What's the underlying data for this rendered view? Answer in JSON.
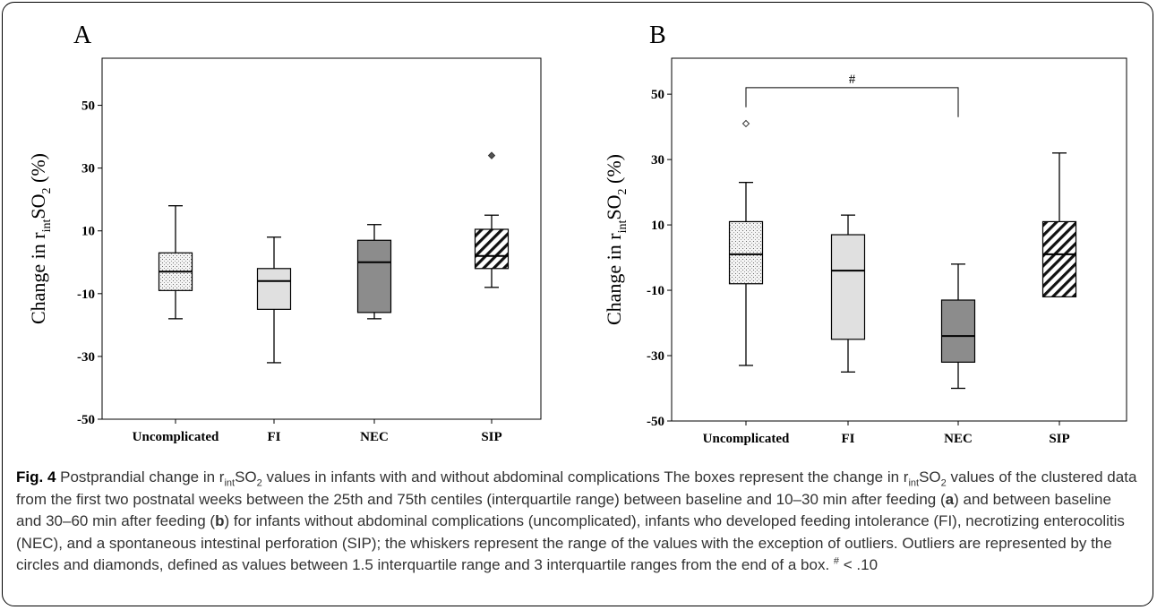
{
  "chart_data": [
    {
      "type": "boxplot",
      "panel": "A",
      "ylabel": "Change in rintSO2 (%)",
      "ylim": [
        -50,
        65
      ],
      "yticks": [
        50,
        30,
        10,
        -10,
        -30,
        -50
      ],
      "categories": [
        "Uncomplicated",
        "FI",
        "NEC",
        "SIP"
      ],
      "boxes": [
        {
          "category": "Uncomplicated",
          "fill": "dotted",
          "whisker_low": -18,
          "q1": -9,
          "median": -3,
          "q3": 3,
          "whisker_high": 18,
          "outliers": []
        },
        {
          "category": "FI",
          "fill": "light-gray",
          "whisker_low": -32,
          "q1": -15,
          "median": -6,
          "q3": -2,
          "whisker_high": 8,
          "outliers": []
        },
        {
          "category": "NEC",
          "fill": "dark-gray",
          "whisker_low": -18,
          "q1": -16,
          "median": 0,
          "q3": 7,
          "whisker_high": 12,
          "outliers": []
        },
        {
          "category": "SIP",
          "fill": "hatched",
          "whisker_low": -8,
          "q1": -2,
          "median": 2,
          "q3": 10.5,
          "whisker_high": 15,
          "outliers": [
            34
          ]
        }
      ],
      "significance": []
    },
    {
      "type": "boxplot",
      "panel": "B",
      "ylabel": "Change in rintSO2 (%)",
      "ylim": [
        -50,
        61
      ],
      "yticks": [
        50,
        30,
        10,
        -10,
        -30,
        -50
      ],
      "categories": [
        "Uncomplicated",
        "FI",
        "NEC",
        "SIP"
      ],
      "boxes": [
        {
          "category": "Uncomplicated",
          "fill": "dotted",
          "whisker_low": -33,
          "q1": -8,
          "median": 1,
          "q3": 11,
          "whisker_high": 23,
          "outliers": [
            41
          ]
        },
        {
          "category": "FI",
          "fill": "light-gray",
          "whisker_low": -35,
          "q1": -25,
          "median": -4,
          "q3": 7,
          "whisker_high": 13,
          "outliers": []
        },
        {
          "category": "NEC",
          "fill": "dark-gray",
          "whisker_low": -40,
          "q1": -32,
          "median": -24,
          "q3": -13,
          "whisker_high": -2,
          "outliers": []
        },
        {
          "category": "SIP",
          "fill": "hatched",
          "whisker_low": -12,
          "q1": -12,
          "median": 1,
          "q3": 11,
          "whisker_high": 32,
          "outliers": []
        }
      ],
      "significance": [
        {
          "from": "Uncomplicated",
          "to": "NEC",
          "label": "#"
        }
      ]
    }
  ],
  "caption": {
    "title": "Fig. 4",
    "text_1": " Postprandial change in r",
    "sub_1": "int",
    "text_2": "SO",
    "sub_2": "2",
    "text_3": " values in infants with and without abdominal complications The boxes represent the change in r",
    "sub_3": "int",
    "text_4": "SO",
    "sub_4": "2",
    "text_5": " values of the clustered data from the first two postnatal weeks between the 25th and 75th centiles (interquartile range) between baseline and 10–30 min after feeding (",
    "bold_a": "a",
    "text_6": ") and between baseline and 30–60 min after feeding (",
    "bold_b": "b",
    "text_7": ") for infants without abdominal complications (uncomplicated), infants who developed feeding intolerance (FI), necrotizing enterocolitis (NEC), and a spontaneous intestinal perforation (SIP); the whiskers represent the range of the values with the exception of outliers. Outliers are represented by the circles and diamonds, defined as values between 1.5 interquartile range and 3 interquartile ranges from the end of a box. ",
    "sup_1": "#",
    "text_8": " < .10"
  }
}
